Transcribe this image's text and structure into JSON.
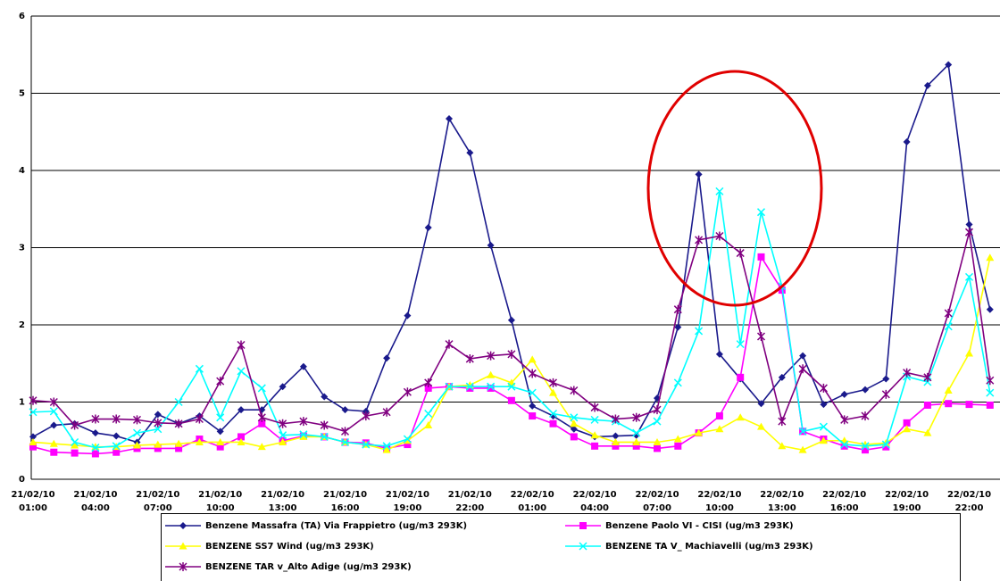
{
  "chart_data": {
    "type": "line",
    "categories": [
      "21/02/10 01:00",
      null,
      null,
      "21/02/10 04:00",
      null,
      null,
      "21/02/10 07:00",
      null,
      null,
      "21/02/10 10:00",
      null,
      null,
      "21/02/10 13:00",
      null,
      null,
      "21/02/10 16:00",
      null,
      null,
      "21/02/10 19:00",
      null,
      null,
      "21/02/10 22:00",
      null,
      null,
      "22/02/10 01:00",
      null,
      null,
      "22/02/10 04:00",
      null,
      null,
      "22/02/10 07:00",
      null,
      null,
      "22/02/10 10:00",
      null,
      null,
      "22/02/10 13:00",
      null,
      null,
      "22/02/10 16:00",
      null,
      null,
      "22/02/10 19:00",
      null,
      null,
      "22/02/10 22:00",
      null
    ],
    "series": [
      {
        "name": "Benzene Massafra (TA) Via Frappietro (ug/m3 293K)",
        "color": "#1a1a8c",
        "marker": "diamond",
        "values": [
          0.55,
          0.7,
          0.72,
          0.6,
          0.56,
          0.48,
          0.84,
          0.72,
          0.82,
          0.62,
          0.9,
          0.9,
          1.2,
          1.46,
          1.07,
          0.9,
          0.88,
          1.57,
          2.12,
          3.26,
          4.67,
          4.23,
          3.03,
          2.06,
          0.95,
          0.82,
          0.65,
          0.55,
          0.56,
          0.57,
          1.05,
          1.97,
          3.95,
          1.62,
          1.3,
          0.98,
          1.32,
          1.6,
          0.97,
          1.1,
          1.16,
          1.3,
          4.37,
          5.1,
          5.37,
          3.3,
          2.2
        ]
      },
      {
        "name": "Benzene Paolo VI - CISI (ug/m3 293K)",
        "color": "#ff00ff",
        "marker": "square",
        "values": [
          0.42,
          0.35,
          0.34,
          0.33,
          0.35,
          0.4,
          0.4,
          0.4,
          0.52,
          0.42,
          0.55,
          0.72,
          0.5,
          0.56,
          0.55,
          0.48,
          0.47,
          0.4,
          0.45,
          1.18,
          1.2,
          1.18,
          1.18,
          1.02,
          0.82,
          0.72,
          0.55,
          0.43,
          0.43,
          0.43,
          0.4,
          0.43,
          0.6,
          0.82,
          1.32,
          2.88,
          2.45,
          0.62,
          0.52,
          0.43,
          0.38,
          0.42,
          0.73,
          0.96,
          0.98,
          0.97,
          0.96
        ]
      },
      {
        "name": "BENZENE SS7 Wind (ug/m3 293K)",
        "color": "#ffff00",
        "marker": "triangle",
        "values": [
          0.48,
          0.46,
          0.44,
          0.42,
          0.42,
          0.44,
          0.45,
          0.46,
          0.48,
          0.48,
          0.48,
          0.42,
          0.48,
          0.55,
          0.55,
          0.48,
          0.45,
          0.38,
          0.5,
          0.7,
          1.2,
          1.22,
          1.35,
          1.25,
          1.55,
          1.12,
          0.72,
          0.57,
          0.48,
          0.48,
          0.48,
          0.52,
          0.6,
          0.65,
          0.8,
          0.68,
          0.43,
          0.38,
          0.5,
          0.5,
          0.45,
          0.47,
          0.65,
          0.6,
          1.15,
          1.63,
          2.87
        ]
      },
      {
        "name": "BENZENE TA V_ Machiavelli (ug/m3 293K)",
        "color": "#00ffff",
        "marker": "x",
        "values": [
          0.87,
          0.88,
          0.48,
          0.41,
          0.43,
          0.6,
          0.65,
          1.0,
          1.43,
          0.8,
          1.4,
          1.18,
          0.57,
          0.58,
          0.55,
          0.48,
          0.45,
          0.43,
          0.52,
          0.85,
          1.2,
          1.2,
          1.2,
          1.2,
          1.12,
          0.85,
          0.8,
          0.77,
          0.75,
          0.6,
          0.75,
          1.25,
          1.92,
          3.73,
          1.75,
          3.46,
          2.5,
          0.62,
          0.68,
          0.45,
          0.43,
          0.45,
          1.33,
          1.26,
          1.98,
          2.62,
          1.12
        ]
      },
      {
        "name": "BENZENE TAR v_Alto Adige (ug/m3 293K)",
        "color": "#800080",
        "marker": "star",
        "values": [
          1.02,
          1.0,
          0.7,
          0.78,
          0.78,
          0.77,
          0.73,
          0.72,
          0.78,
          1.27,
          1.74,
          0.8,
          0.72,
          0.75,
          0.7,
          0.62,
          0.82,
          0.87,
          1.13,
          1.25,
          1.75,
          1.56,
          1.6,
          1.62,
          1.37,
          1.25,
          1.15,
          0.93,
          0.78,
          0.8,
          0.9,
          2.2,
          3.1,
          3.15,
          2.93,
          1.85,
          0.75,
          1.43,
          1.18,
          0.77,
          0.82,
          1.1,
          1.38,
          1.32,
          2.15,
          3.2,
          1.28
        ]
      }
    ],
    "ylim": [
      0,
      6
    ],
    "yticks": [
      0,
      1,
      2,
      3,
      4,
      5,
      6
    ],
    "grid": true,
    "legend": "bottom"
  }
}
